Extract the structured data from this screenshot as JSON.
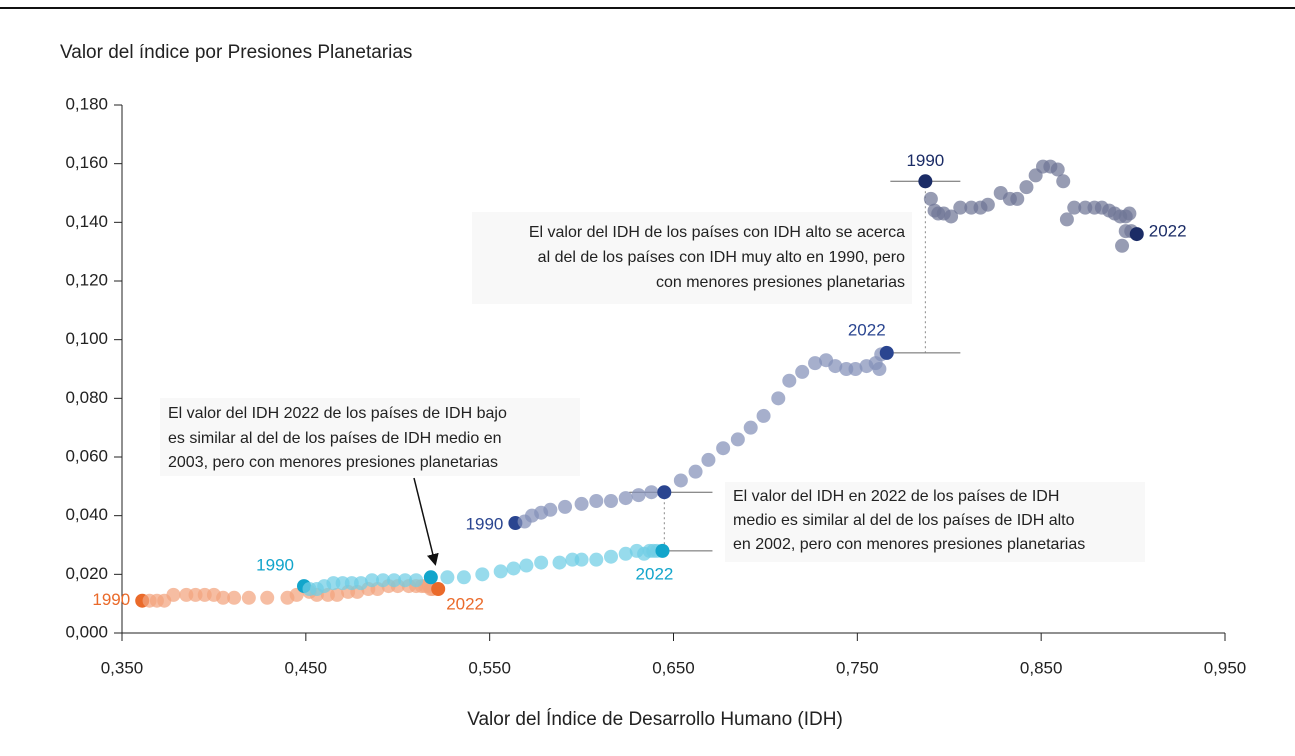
{
  "chart_data": {
    "type": "scatter",
    "title": "Valor del índice por Presiones Planetarias",
    "x_label": "Valor del Índice de Desarrollo Humano (IDH)",
    "xlim": [
      0.35,
      0.95
    ],
    "xticks": [
      {
        "value": 0.35,
        "label": "0,350"
      },
      {
        "value": 0.45,
        "label": "0,450"
      },
      {
        "value": 0.55,
        "label": "0,550"
      },
      {
        "value": 0.65,
        "label": "0,650"
      },
      {
        "value": 0.75,
        "label": "0,750"
      },
      {
        "value": 0.85,
        "label": "0,850"
      },
      {
        "value": 0.95,
        "label": "0,950"
      }
    ],
    "ylim": [
      0,
      0.18
    ],
    "yticks": [
      {
        "value": 0,
        "label": "0,000"
      },
      {
        "value": 0.02,
        "label": "0,020"
      },
      {
        "value": 0.04,
        "label": "0,040"
      },
      {
        "value": 0.06,
        "label": "0,060"
      },
      {
        "value": 0.08,
        "label": "0,080"
      },
      {
        "value": 0.1,
        "label": "0,100"
      },
      {
        "value": 0.12,
        "label": "0,120"
      },
      {
        "value": 0.14,
        "label": "0,140"
      },
      {
        "value": 0.16,
        "label": "0,160"
      },
      {
        "value": 0.18,
        "label": "0,180"
      }
    ],
    "series": [
      {
        "color": "#f3a47e",
        "highlight_color": "#ea6a2a",
        "start_label": "1990",
        "end_label": "2022",
        "x": [
          0.361,
          0.365,
          0.369,
          0.373,
          0.378,
          0.385,
          0.39,
          0.395,
          0.4,
          0.405,
          0.411,
          0.419,
          0.429,
          0.44,
          0.445,
          0.452,
          0.456,
          0.462,
          0.467,
          0.473,
          0.478,
          0.484,
          0.489,
          0.495,
          0.5,
          0.506,
          0.51,
          0.513,
          0.515,
          0.517,
          0.518,
          0.519,
          0.522
        ],
        "values": [
          0.011,
          0.011,
          0.011,
          0.011,
          0.013,
          0.013,
          0.013,
          0.013,
          0.013,
          0.012,
          0.012,
          0.012,
          0.012,
          0.012,
          0.013,
          0.014,
          0.013,
          0.013,
          0.013,
          0.014,
          0.014,
          0.015,
          0.015,
          0.016,
          0.016,
          0.016,
          0.016,
          0.016,
          0.016,
          0.016,
          0.015,
          0.015,
          0.015
        ]
      },
      {
        "color": "#6fcde4",
        "highlight_color": "#12a5cb",
        "start_label": "1990",
        "end_label": "2022",
        "x": [
          0.449,
          0.452,
          0.456,
          0.46,
          0.465,
          0.47,
          0.475,
          0.48,
          0.486,
          0.492,
          0.498,
          0.504,
          0.51,
          0.518,
          0.527,
          0.536,
          0.546,
          0.556,
          0.563,
          0.57,
          0.578,
          0.588,
          0.595,
          0.6,
          0.608,
          0.616,
          0.624,
          0.63,
          0.634,
          0.637,
          0.639,
          0.641,
          0.644
        ],
        "values": [
          0.016,
          0.015,
          0.015,
          0.016,
          0.017,
          0.017,
          0.017,
          0.017,
          0.018,
          0.018,
          0.018,
          0.018,
          0.018,
          0.019,
          0.019,
          0.019,
          0.02,
          0.021,
          0.022,
          0.023,
          0.024,
          0.024,
          0.025,
          0.025,
          0.025,
          0.026,
          0.027,
          0.028,
          0.027,
          0.028,
          0.028,
          0.028,
          0.028
        ]
      },
      {
        "color": "#8390b8",
        "highlight_color": "#2a4590",
        "start_label": "1990",
        "end_label": "2022",
        "x": [
          0.564,
          0.569,
          0.573,
          0.578,
          0.583,
          0.591,
          0.6,
          0.608,
          0.616,
          0.624,
          0.631,
          0.638,
          0.645,
          0.654,
          0.662,
          0.669,
          0.677,
          0.685,
          0.692,
          0.699,
          0.707,
          0.713,
          0.72,
          0.727,
          0.733,
          0.738,
          0.744,
          0.749,
          0.755,
          0.76,
          0.762,
          0.763,
          0.766
        ],
        "values": [
          0.0375,
          0.038,
          0.04,
          0.041,
          0.042,
          0.043,
          0.044,
          0.045,
          0.045,
          0.046,
          0.047,
          0.048,
          0.048,
          0.052,
          0.055,
          0.059,
          0.063,
          0.066,
          0.07,
          0.074,
          0.08,
          0.086,
          0.089,
          0.092,
          0.093,
          0.091,
          0.09,
          0.09,
          0.091,
          0.092,
          0.09,
          0.095,
          0.0955
        ]
      },
      {
        "color": "#6f7696",
        "highlight_color": "#1b2c66",
        "start_label": "1990",
        "end_label": "2022",
        "x": [
          0.787,
          0.79,
          0.792,
          0.794,
          0.797,
          0.801,
          0.806,
          0.812,
          0.817,
          0.821,
          0.828,
          0.833,
          0.837,
          0.842,
          0.847,
          0.851,
          0.855,
          0.859,
          0.862,
          0.864,
          0.868,
          0.874,
          0.879,
          0.883,
          0.887,
          0.89,
          0.893,
          0.896,
          0.898,
          0.894,
          0.896,
          0.899,
          0.902
        ],
        "values": [
          0.154,
          0.148,
          0.144,
          0.143,
          0.143,
          0.142,
          0.145,
          0.145,
          0.145,
          0.146,
          0.15,
          0.148,
          0.148,
          0.152,
          0.156,
          0.159,
          0.159,
          0.158,
          0.154,
          0.141,
          0.145,
          0.145,
          0.145,
          0.145,
          0.144,
          0.143,
          0.142,
          0.142,
          0.143,
          0.132,
          0.137,
          0.137,
          0.136
        ]
      }
    ],
    "annotations": [
      [
        "El valor del IDH de los países con IDH alto se acerca",
        "al del de los países con IDH muy alto en 1990, pero",
        "con menores presiones planetarias"
      ],
      [
        "El valor del IDH 2022 de los países de IDH bajo",
        "es similar al del de los países de IDH medio en",
        "2003, pero con menores presiones planetarias"
      ],
      [
        "El valor del IDH en 2022 de los países de IDH",
        "medio es similar al del de los países de IDH alto",
        "en 2002, pero con menores presiones planetarias"
      ]
    ]
  }
}
